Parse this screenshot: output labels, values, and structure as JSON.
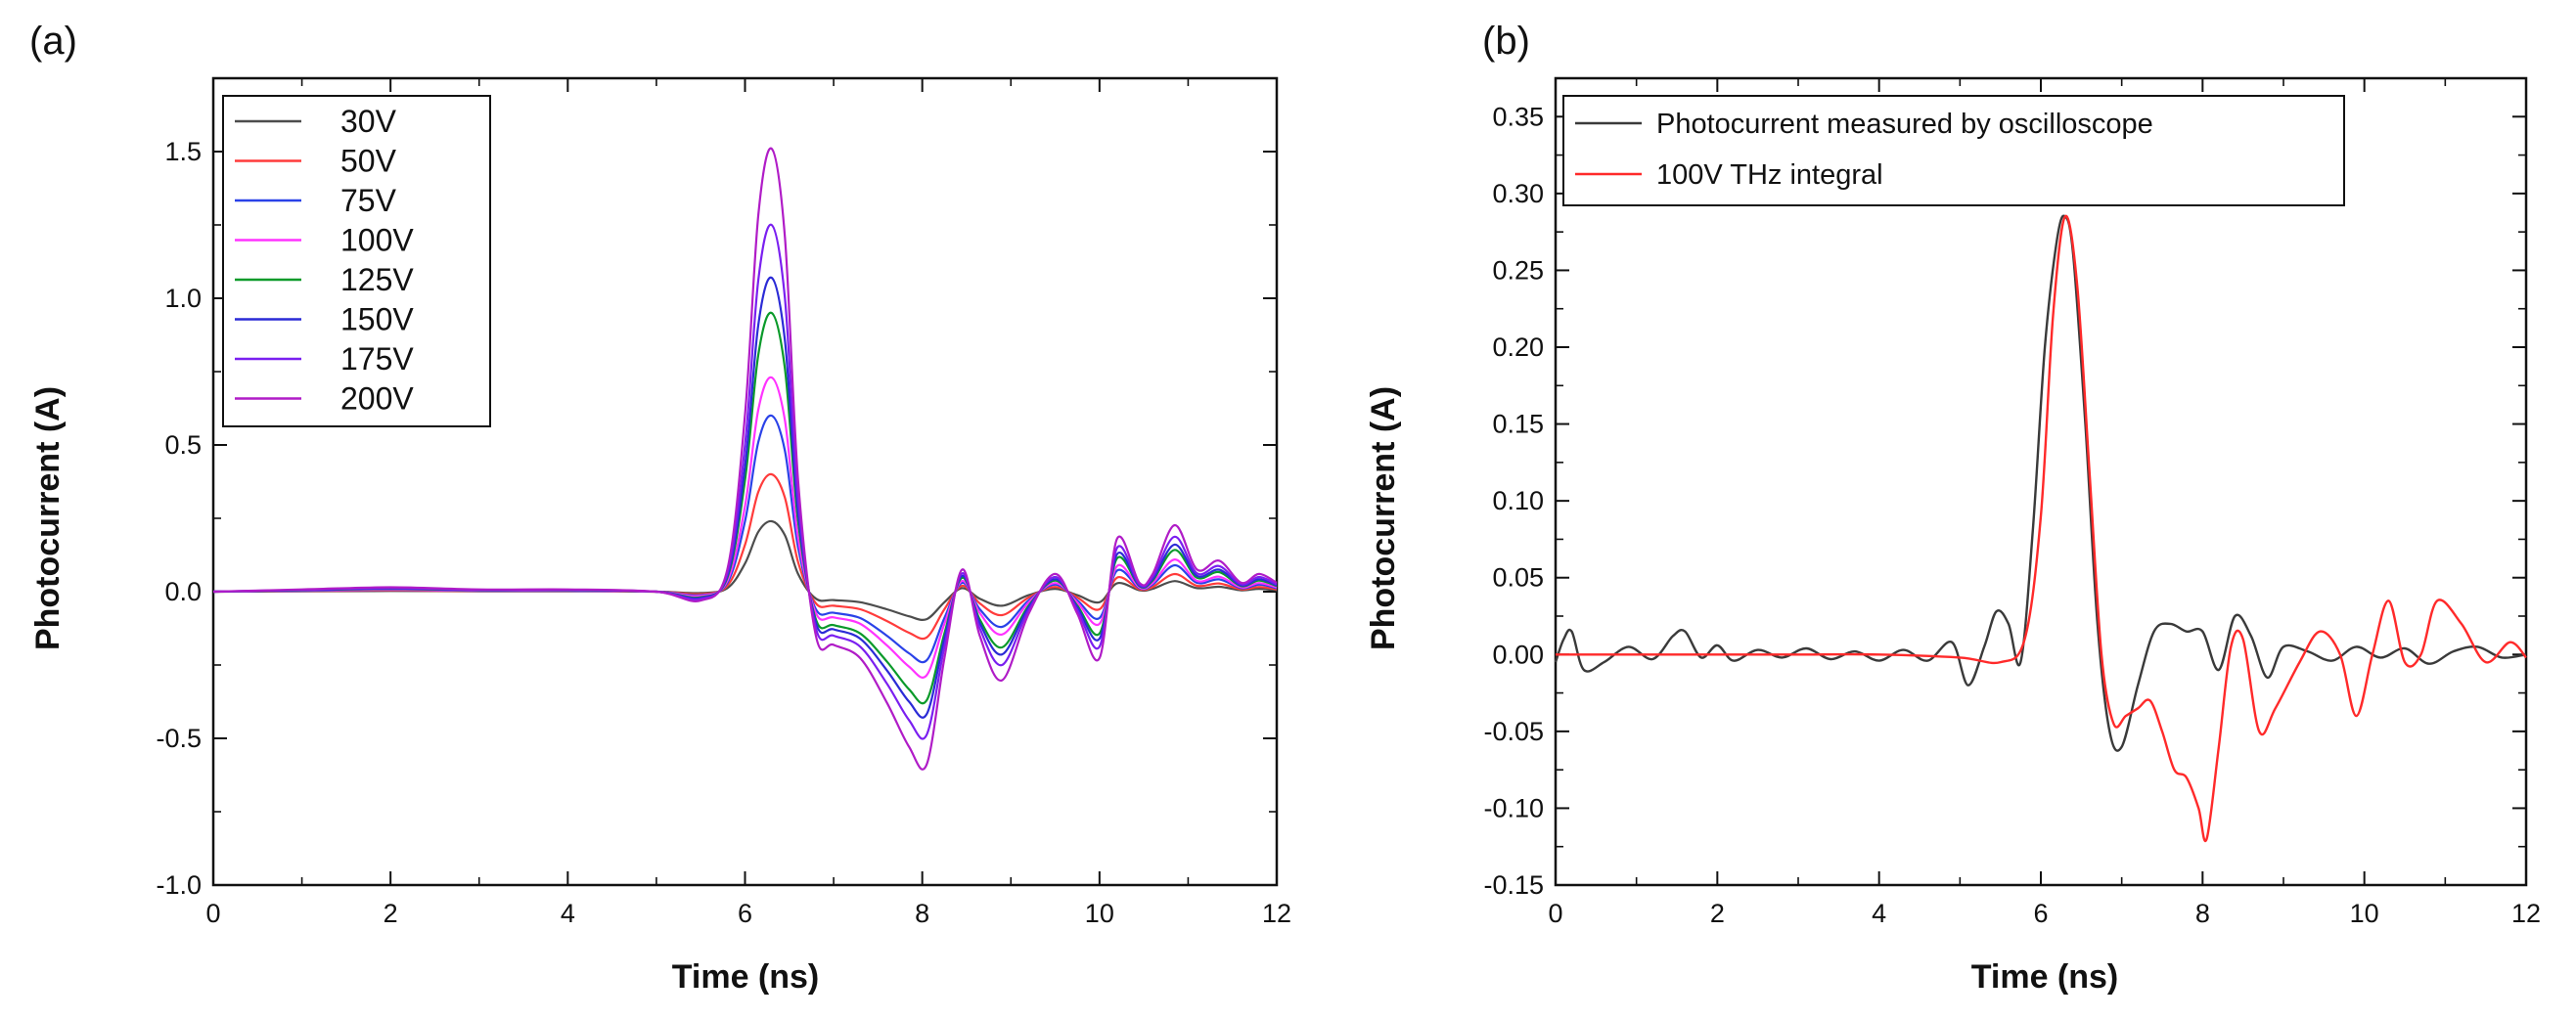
{
  "panels": [
    {
      "label": "(a)",
      "chart_data": {
        "type": "line",
        "title": "",
        "xlabel": "Time (ns)",
        "ylabel": "Photocurrent (A)",
        "xlim": [
          0,
          12
        ],
        "ylim": [
          -1.0,
          1.75
        ],
        "xticks": [
          0,
          2,
          4,
          6,
          8,
          10,
          12
        ],
        "xtick_labels": [
          "0",
          "2",
          "4",
          "6",
          "8",
          "10",
          "12"
        ],
        "yticks": [
          -1.0,
          -0.5,
          0.0,
          0.5,
          1.0,
          1.5
        ],
        "ytick_labels": [
          "-1.0",
          "-0.5",
          "0.0",
          "0.5",
          "1.0",
          "1.5"
        ],
        "grid": false,
        "legend_position": "top-left",
        "x": [
          0,
          1,
          2,
          3,
          4,
          5,
          5.5,
          5.8,
          6.0,
          6.15,
          6.3,
          6.45,
          6.6,
          6.8,
          7.0,
          7.3,
          7.6,
          7.85,
          8.05,
          8.25,
          8.45,
          8.65,
          8.9,
          9.2,
          9.5,
          9.75,
          10.0,
          10.2,
          10.45,
          10.6,
          10.85,
          11.1,
          11.35,
          11.6,
          11.8,
          12.0
        ],
        "base_shape": [
          0,
          0.005,
          0.01,
          0.005,
          0.005,
          0,
          -0.02,
          0.05,
          0.4,
          0.85,
          1.0,
          0.8,
          0.25,
          -0.1,
          -0.12,
          -0.15,
          -0.25,
          -0.35,
          -0.39,
          -0.15,
          0.05,
          -0.1,
          -0.2,
          -0.05,
          0.04,
          -0.05,
          -0.15,
          0.12,
          0.02,
          0.04,
          0.15,
          0.05,
          0.07,
          0.02,
          0.04,
          0.02
        ],
        "series": [
          {
            "name": "30V",
            "color": "#4d4d4d",
            "peak": 0.24
          },
          {
            "name": "50V",
            "color": "#ff3b3b",
            "peak": 0.4
          },
          {
            "name": "75V",
            "color": "#2a42e8",
            "peak": 0.6
          },
          {
            "name": "100V",
            "color": "#ff33ff",
            "peak": 0.73
          },
          {
            "name": "125V",
            "color": "#0a9a2a",
            "peak": 0.95
          },
          {
            "name": "150V",
            "color": "#2b2bd6",
            "peak": 1.07
          },
          {
            "name": "175V",
            "color": "#7a1ff0",
            "peak": 1.25
          },
          {
            "name": "200V",
            "color": "#b01cc7",
            "peak": 1.51
          }
        ]
      }
    },
    {
      "label": "(b)",
      "chart_data": {
        "type": "line",
        "title": "",
        "xlabel": "Time (ns)",
        "ylabel": "Photocurrent (A)",
        "xlim": [
          0,
          12
        ],
        "ylim": [
          -0.15,
          0.375
        ],
        "xticks": [
          0,
          2,
          4,
          6,
          8,
          10,
          12
        ],
        "xtick_labels": [
          "0",
          "2",
          "4",
          "6",
          "8",
          "10",
          "12"
        ],
        "yticks": [
          -0.15,
          -0.1,
          -0.05,
          0.0,
          0.05,
          0.1,
          0.15,
          0.2,
          0.25,
          0.3,
          0.35
        ],
        "ytick_labels": [
          "-0.15",
          "-0.10",
          "-0.05",
          "0.00",
          "0.05",
          "0.10",
          "0.15",
          "0.20",
          "0.25",
          "0.30",
          "0.35"
        ],
        "grid": false,
        "legend_position": "top-left",
        "series": [
          {
            "name": "Photocurrent measured by oscilloscope",
            "color": "#3a3a3a",
            "x": [
              0,
              0.1,
              0.2,
              0.35,
              0.6,
              0.9,
              1.2,
              1.45,
              1.6,
              1.8,
              2.0,
              2.2,
              2.5,
              2.8,
              3.1,
              3.4,
              3.7,
              4.0,
              4.3,
              4.6,
              4.9,
              5.1,
              5.3,
              5.45,
              5.6,
              5.75,
              5.9,
              6.05,
              6.2,
              6.3,
              6.4,
              6.55,
              6.7,
              6.85,
              7.0,
              7.2,
              7.4,
              7.6,
              7.8,
              8.0,
              8.2,
              8.4,
              8.6,
              8.8,
              9.0,
              9.3,
              9.6,
              9.9,
              10.2,
              10.5,
              10.8,
              11.1,
              11.4,
              11.7,
              12.0
            ],
            "y": [
              -0.005,
              0.01,
              0.015,
              -0.01,
              -0.005,
              0.005,
              -0.003,
              0.012,
              0.015,
              -0.002,
              0.006,
              -0.004,
              0.003,
              -0.002,
              0.004,
              -0.003,
              0.002,
              -0.004,
              0.003,
              -0.004,
              0.008,
              -0.02,
              0.005,
              0.028,
              0.02,
              -0.005,
              0.08,
              0.2,
              0.27,
              0.285,
              0.26,
              0.15,
              0.02,
              -0.05,
              -0.06,
              -0.02,
              0.015,
              0.02,
              0.015,
              0.015,
              -0.01,
              0.025,
              0.012,
              -0.015,
              0.005,
              0.002,
              -0.004,
              0.005,
              -0.002,
              0.004,
              -0.006,
              0.002,
              0.005,
              -0.002,
              0.0
            ]
          },
          {
            "name": "100V THz integral",
            "color": "#ff2a2a",
            "x": [
              0,
              1,
              2,
              3,
              4,
              5,
              5.5,
              5.8,
              6.0,
              6.15,
              6.3,
              6.45,
              6.6,
              6.75,
              6.9,
              7.05,
              7.2,
              7.35,
              7.5,
              7.65,
              7.8,
              7.95,
              8.05,
              8.2,
              8.35,
              8.5,
              8.7,
              8.9,
              9.2,
              9.45,
              9.7,
              9.9,
              10.1,
              10.3,
              10.5,
              10.7,
              10.9,
              11.2,
              11.5,
              11.8,
              12.0
            ],
            "y": [
              0.0,
              0.0,
              0.0,
              0.0,
              0.0,
              -0.002,
              -0.005,
              0.01,
              0.09,
              0.22,
              0.285,
              0.24,
              0.12,
              0.0,
              -0.045,
              -0.04,
              -0.035,
              -0.03,
              -0.05,
              -0.075,
              -0.08,
              -0.1,
              -0.12,
              -0.06,
              0.005,
              0.01,
              -0.05,
              -0.035,
              -0.005,
              0.015,
              0.0,
              -0.04,
              0.0,
              0.035,
              -0.005,
              0.0,
              0.035,
              0.02,
              -0.005,
              0.008,
              -0.002
            ]
          }
        ]
      }
    }
  ]
}
